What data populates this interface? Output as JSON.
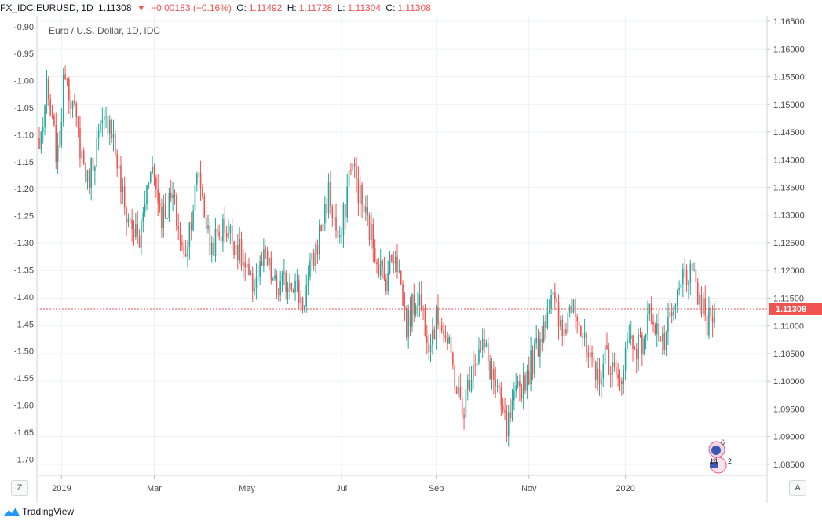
{
  "header": {
    "symbol": "FX_IDC:EURUSD, 1D",
    "last": "1.11308",
    "change": "−0.00183 (−0.16%)",
    "o_label": "O:",
    "o_value": "1.11492",
    "h_label": "H:",
    "h_value": "1.11728",
    "l_label": "L:",
    "l_value": "1.11304",
    "c_label": "C:",
    "c_value": "1.11308"
  },
  "chart_data": {
    "type": "candlestick",
    "title": "Euro / U.S. Dollar, 1D, IDC",
    "x_tick_labels": [
      "2019",
      "Mar",
      "May",
      "Jul",
      "Sep",
      "Nov",
      "2020"
    ],
    "right_axis_labels": [
      "1.16500",
      "1.16000",
      "1.15500",
      "1.15000",
      "1.14500",
      "1.14000",
      "1.13500",
      "1.13000",
      "1.12500",
      "1.12000",
      "1.11500",
      "1.11000",
      "1.10500",
      "1.10000",
      "1.09500",
      "1.09000",
      "1.08500"
    ],
    "right_axis_range": [
      1.083,
      1.166
    ],
    "left_axis_labels": [
      "-0.90",
      "-0.95",
      "-1.00",
      "-1.05",
      "-1.10",
      "-1.15",
      "-1.20",
      "-1.25",
      "-1.30",
      "-1.35",
      "-1.40",
      "-1.45",
      "-1.50",
      "-1.55",
      "-1.60",
      "-1.65",
      "-1.70"
    ],
    "left_axis_range": [
      -1.73,
      -0.88
    ],
    "last_price_label": "1.11308",
    "last_price": 1.11308,
    "grid": true,
    "up_color": "#26a69a",
    "down_color": "#ef5350",
    "anchors": [
      {
        "i": 0,
        "p": 1.142
      },
      {
        "i": 4,
        "p": 1.152
      },
      {
        "i": 10,
        "p": 1.14
      },
      {
        "i": 14,
        "p": 1.157
      },
      {
        "i": 20,
        "p": 1.146
      },
      {
        "i": 26,
        "p": 1.136
      },
      {
        "i": 32,
        "p": 1.144
      },
      {
        "i": 38,
        "p": 1.148
      },
      {
        "i": 46,
        "p": 1.131
      },
      {
        "i": 54,
        "p": 1.125
      },
      {
        "i": 60,
        "p": 1.14
      },
      {
        "i": 66,
        "p": 1.13
      },
      {
        "i": 72,
        "p": 1.133
      },
      {
        "i": 78,
        "p": 1.122
      },
      {
        "i": 86,
        "p": 1.138
      },
      {
        "i": 92,
        "p": 1.124
      },
      {
        "i": 100,
        "p": 1.128
      },
      {
        "i": 106,
        "p": 1.125
      },
      {
        "i": 114,
        "p": 1.117
      },
      {
        "i": 122,
        "p": 1.122
      },
      {
        "i": 128,
        "p": 1.116
      },
      {
        "i": 136,
        "p": 1.119
      },
      {
        "i": 142,
        "p": 1.114
      },
      {
        "i": 150,
        "p": 1.125
      },
      {
        "i": 156,
        "p": 1.134
      },
      {
        "i": 162,
        "p": 1.124
      },
      {
        "i": 168,
        "p": 1.14
      },
      {
        "i": 174,
        "p": 1.132
      },
      {
        "i": 180,
        "p": 1.125
      },
      {
        "i": 186,
        "p": 1.118
      },
      {
        "i": 192,
        "p": 1.124
      },
      {
        "i": 198,
        "p": 1.11
      },
      {
        "i": 204,
        "p": 1.116
      },
      {
        "i": 210,
        "p": 1.108
      },
      {
        "i": 216,
        "p": 1.112
      },
      {
        "i": 222,
        "p": 1.104
      },
      {
        "i": 228,
        "p": 1.094
      },
      {
        "i": 234,
        "p": 1.104
      },
      {
        "i": 240,
        "p": 1.106
      },
      {
        "i": 246,
        "p": 1.099
      },
      {
        "i": 252,
        "p": 1.091
      },
      {
        "i": 258,
        "p": 1.098
      },
      {
        "i": 264,
        "p": 1.102
      },
      {
        "i": 270,
        "p": 1.108
      },
      {
        "i": 276,
        "p": 1.116
      },
      {
        "i": 282,
        "p": 1.108
      },
      {
        "i": 288,
        "p": 1.116
      },
      {
        "i": 294,
        "p": 1.106
      },
      {
        "i": 300,
        "p": 1.1
      },
      {
        "i": 306,
        "p": 1.105
      },
      {
        "i": 312,
        "p": 1.099
      },
      {
        "i": 318,
        "p": 1.108
      },
      {
        "i": 324,
        "p": 1.106
      },
      {
        "i": 330,
        "p": 1.113
      },
      {
        "i": 336,
        "p": 1.106
      },
      {
        "i": 342,
        "p": 1.112
      },
      {
        "i": 348,
        "p": 1.12
      },
      {
        "i": 354,
        "p": 1.117
      },
      {
        "i": 360,
        "p": 1.11
      },
      {
        "i": 364,
        "p": 1.1131
      }
    ]
  },
  "markers": {
    "ideas_count": "6",
    "events_a": "14",
    "events_b": "2"
  },
  "corner": {
    "left": "Z",
    "right": "A"
  },
  "footer": {
    "brand": "TradingView"
  }
}
